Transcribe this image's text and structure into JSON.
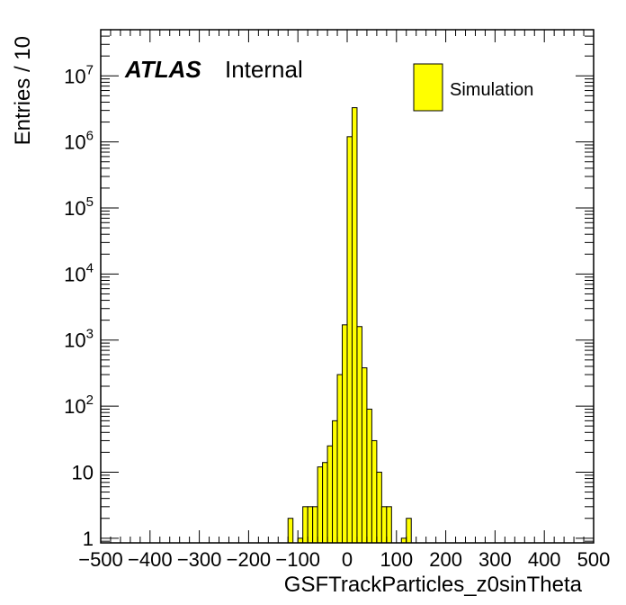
{
  "chart_data": {
    "type": "histogram",
    "xlabel": "GSFTrackParticles_z0sinTheta",
    "ylabel": "Entries / 10",
    "xlim": [
      -500,
      500
    ],
    "ylim": [
      0.85,
      50000000
    ],
    "yscale": "log",
    "x_ticks": [
      -500,
      -400,
      -300,
      -200,
      -100,
      0,
      100,
      200,
      300,
      400,
      500
    ],
    "x_tick_labels": [
      "−500",
      "−400",
      "−300",
      "−200",
      "−100",
      "0",
      "100",
      "200",
      "300",
      "400",
      "500"
    ],
    "y_ticks": [
      {
        "value": 1,
        "label": "1"
      },
      {
        "value": 10,
        "label": "10"
      },
      {
        "value": 100,
        "base": "10",
        "exp": "2"
      },
      {
        "value": 1000,
        "base": "10",
        "exp": "3"
      },
      {
        "value": 10000,
        "base": "10",
        "exp": "4"
      },
      {
        "value": 100000,
        "base": "10",
        "exp": "5"
      },
      {
        "value": 1000000,
        "base": "10",
        "exp": "6"
      },
      {
        "value": 10000000,
        "base": "10",
        "exp": "7"
      }
    ],
    "grid": false,
    "bin_width": 10,
    "fill_color": "#ffff00",
    "line_color": "#000000",
    "series": [
      {
        "name": "Simulation",
        "bins": [
          {
            "x0": -120,
            "x1": -110,
            "value": 2
          },
          {
            "x0": -100,
            "x1": -90,
            "value": 1
          },
          {
            "x0": -90,
            "x1": -80,
            "value": 3
          },
          {
            "x0": -80,
            "x1": -70,
            "value": 3
          },
          {
            "x0": -70,
            "x1": -60,
            "value": 3
          },
          {
            "x0": -60,
            "x1": -50,
            "value": 12
          },
          {
            "x0": -50,
            "x1": -40,
            "value": 14
          },
          {
            "x0": -40,
            "x1": -30,
            "value": 25
          },
          {
            "x0": -30,
            "x1": -20,
            "value": 60
          },
          {
            "x0": -20,
            "x1": -10,
            "value": 300
          },
          {
            "x0": -10,
            "x1": 0,
            "value": 1700
          },
          {
            "x0": 0,
            "x1": 10,
            "value": 1200000
          },
          {
            "x0": 10,
            "x1": 20,
            "value": 3300000
          },
          {
            "x0": 20,
            "x1": 30,
            "value": 1600
          },
          {
            "x0": 30,
            "x1": 40,
            "value": 380
          },
          {
            "x0": 40,
            "x1": 50,
            "value": 90
          },
          {
            "x0": 50,
            "x1": 60,
            "value": 30
          },
          {
            "x0": 60,
            "x1": 70,
            "value": 10
          },
          {
            "x0": 70,
            "x1": 80,
            "value": 3
          },
          {
            "x0": 80,
            "x1": 90,
            "value": 3
          },
          {
            "x0": 110,
            "x1": 120,
            "value": 1
          },
          {
            "x0": 120,
            "x1": 130,
            "value": 2
          }
        ]
      }
    ],
    "legend": {
      "position": "top-right",
      "entries": [
        "Simulation"
      ]
    },
    "label": {
      "experiment": "ATLAS",
      "status": "Internal"
    }
  }
}
